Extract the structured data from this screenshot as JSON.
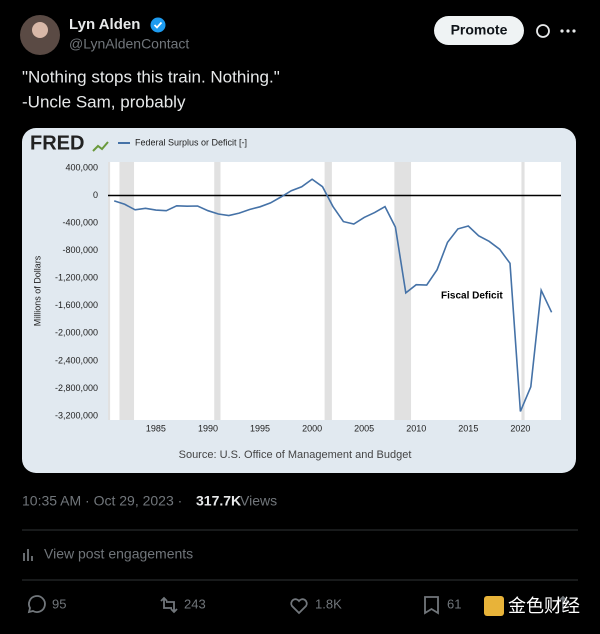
{
  "tweet": {
    "name": "Lyn Alden",
    "handle": "@LynAldenContact",
    "button": "Promote",
    "text_lines": [
      "\"Nothing stops this train. Nothing.\"",
      "-Uncle Sam, probably"
    ],
    "time": "10:35 AM · Oct 29, 2023 ·",
    "views": "317.7K",
    "views_label": "Views",
    "engagements": "View post engagements",
    "replies": "95",
    "reposts": "243",
    "likes": "1.8K",
    "bookmarks": "61",
    "watermark": "金色财经"
  },
  "chart_data": {
    "type": "line",
    "logo": "FRED",
    "y_label": "Millions of Dollars",
    "annotation": "Fiscal Deficit",
    "source": "Source: U.S. Office of Management and Budget",
    "x": [
      1981,
      1982,
      1983,
      1984,
      1985,
      1986,
      1987,
      1988,
      1989,
      1990,
      1991,
      1992,
      1993,
      1994,
      1995,
      1996,
      1997,
      1998,
      1999,
      2000,
      2001,
      2002,
      2003,
      2004,
      2005,
      2006,
      2007,
      2008,
      2009,
      2010,
      2011,
      2012,
      2013,
      2014,
      2015,
      2016,
      2017,
      2018,
      2019,
      2020,
      2021,
      2022,
      2023
    ],
    "series": [
      {
        "name": "Federal Surplus or Deficit [-]",
        "color": "#4572a7",
        "values": [
          -79000,
          -128000,
          -208000,
          -185000,
          -212000,
          -221000,
          -150000,
          -155000,
          -153000,
          -221000,
          -269000,
          -290000,
          -255000,
          -203000,
          -164000,
          -107000,
          -22000,
          69000,
          126000,
          236000,
          128000,
          -158000,
          -378000,
          -413000,
          -318000,
          -248000,
          -161000,
          -459000,
          -1413000,
          -1294000,
          -1300000,
          -1077000,
          -680000,
          -485000,
          -442000,
          -585000,
          -665000,
          -779000,
          -984000,
          -3132000,
          -2775000,
          -1376000,
          -1695000
        ]
      }
    ],
    "recessions": [
      [
        1980.4,
        1980.6
      ],
      [
        1981.5,
        1982.9
      ],
      [
        1990.6,
        1991.2
      ],
      [
        2001.2,
        2001.9
      ],
      [
        2007.9,
        2009.5
      ],
      [
        2020.1,
        2020.4
      ]
    ],
    "xlim": [
      1980.4,
      2023.9
    ],
    "ylim": [
      -3257000,
      486000
    ],
    "xticks": [
      1985,
      1990,
      1995,
      2000,
      2005,
      2010,
      2015,
      2020
    ],
    "yticks": [
      {
        "value": 400000,
        "label": "400,000"
      },
      0,
      {
        "value": -400000,
        "label": "-400,000"
      },
      {
        "value": -800000,
        "label": "-800,000"
      },
      {
        "value": -1200000,
        "label": "-1,200,000"
      },
      {
        "value": -1600000,
        "label": "-1,600,000"
      },
      {
        "value": -2000000,
        "label": "-2,000,000"
      },
      {
        "value": -2400000,
        "label": "-2,400,000"
      },
      {
        "value": -2800000,
        "label": "-2,800,000"
      },
      {
        "value": -3200000,
        "label": "-3,200,000"
      }
    ],
    "grid": false
  }
}
